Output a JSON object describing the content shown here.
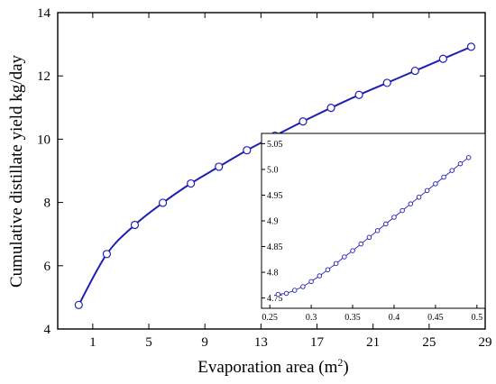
{
  "chart_data": [
    {
      "type": "line",
      "xlabel": "Evaporation area (m²)",
      "ylabel": "Cumulative distillate yield kg/day",
      "xlim": [
        -1.5,
        29
      ],
      "ylim": [
        4,
        14
      ],
      "xticks": [
        "1",
        "5",
        "9",
        "13",
        "17",
        "21",
        "25",
        "29"
      ],
      "xtick_values": [
        1,
        5,
        9,
        13,
        17,
        21,
        25,
        29
      ],
      "yticks": [
        "4",
        "6",
        "8",
        "10",
        "12",
        "14"
      ],
      "ytick_values": [
        4,
        6,
        8,
        10,
        12,
        14
      ],
      "series": [
        {
          "x": [
            0,
            2,
            4,
            6,
            8,
            10,
            12,
            14,
            16,
            18,
            20,
            22,
            24,
            26,
            28
          ],
          "y": [
            4.76,
            6.37,
            7.29,
            7.99,
            8.6,
            9.13,
            9.65,
            10.11,
            10.56,
            10.99,
            11.4,
            11.78,
            12.16,
            12.54,
            12.92
          ]
        }
      ],
      "grid": false,
      "line_color": "#1f1fb4"
    },
    {
      "type": "line",
      "xlim": [
        0.24,
        0.51
      ],
      "ylim": [
        4.73,
        5.07
      ],
      "xticks": [
        "0.25",
        "0.3",
        "0.35",
        "0.4",
        "0.45",
        "0.5"
      ],
      "xtick_values": [
        0.25,
        0.3,
        0.35,
        0.4,
        0.45,
        0.5
      ],
      "yticks": [
        "4.75",
        "4.8",
        "4.85",
        "4.9",
        "4.95",
        "5.0",
        "5.05"
      ],
      "ytick_values": [
        4.75,
        4.8,
        4.85,
        4.9,
        4.95,
        5.0,
        5.05
      ],
      "series": [
        {
          "x": [
            0.26,
            0.27,
            0.28,
            0.29,
            0.3,
            0.31,
            0.32,
            0.33,
            0.34,
            0.35,
            0.36,
            0.37,
            0.38,
            0.39,
            0.4,
            0.41,
            0.42,
            0.43,
            0.44,
            0.45,
            0.46,
            0.47,
            0.48,
            0.49
          ],
          "y": [
            4.757,
            4.759,
            4.765,
            4.772,
            4.782,
            4.793,
            4.805,
            4.817,
            4.83,
            4.842,
            4.855,
            4.868,
            4.881,
            4.894,
            4.907,
            4.92,
            4.933,
            4.946,
            4.959,
            4.972,
            4.985,
            4.998,
            5.011,
            5.023
          ]
        }
      ],
      "grid": false,
      "line_color": "#1f1fb4"
    }
  ]
}
